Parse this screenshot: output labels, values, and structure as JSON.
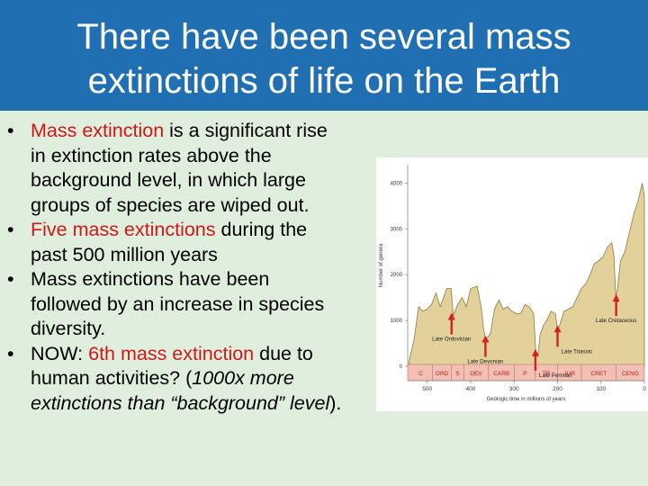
{
  "slide": {
    "title_line1": "There have been several mass",
    "title_line2": "extinctions of life on the Earth"
  },
  "bullets": {
    "b1": {
      "red": "Mass extinction",
      "rest1": " is a significant rise",
      "rest2": "in extinction rates above the",
      "rest3": "background level, in which large",
      "rest4": "groups of species are wiped out."
    },
    "b2": {
      "red": "Five mass extinctions",
      "rest1": " during the",
      "rest2": "past 500 million years"
    },
    "b3": {
      "line1": "Mass extinctions have been",
      "line2": "followed by an increase in species",
      "line3": "diversity."
    },
    "b4": {
      "pre": "NOW: ",
      "red": "6th mass extinction",
      "post": " due to",
      "line2a": "human activities? (",
      "line2b": "1000x more",
      "line3a": "extinctions than “background” level",
      "line3b": ")."
    }
  },
  "chart_data": {
    "type": "area",
    "ylabel": "Number of genera",
    "xlabel": "Geologic time in millions of years",
    "yticks": [
      0,
      1000,
      2000,
      3000,
      4000
    ],
    "xticks": [
      500,
      400,
      300,
      200,
      100,
      0
    ],
    "ylim": [
      0,
      4400
    ],
    "xlim": [
      545,
      0
    ],
    "series": [
      {
        "x": [
          542,
          530,
          520,
          510,
          500,
          490,
          480,
          470,
          455,
          445,
          440,
          430,
          420,
          410,
          400,
          385,
          375,
          370,
          365,
          355,
          345,
          335,
          325,
          315,
          305,
          295,
          285,
          275,
          265,
          255,
          250,
          245,
          240,
          232,
          225,
          215,
          205,
          200,
          195,
          185,
          175,
          165,
          155,
          145,
          135,
          125,
          115,
          105,
          95,
          85,
          75,
          70,
          66,
          62,
          55,
          45,
          35,
          25,
          15,
          5,
          0
        ],
        "values": [
          100,
          600,
          1300,
          1200,
          1250,
          1350,
          1600,
          1300,
          1700,
          1700,
          1100,
          1350,
          1500,
          1300,
          1700,
          1750,
          1250,
          800,
          600,
          700,
          1250,
          1450,
          1250,
          1300,
          1200,
          1150,
          1150,
          1350,
          1300,
          1150,
          300,
          250,
          700,
          900,
          1000,
          1200,
          1150,
          800,
          900,
          1200,
          1250,
          1300,
          1500,
          1700,
          1800,
          2000,
          2250,
          2300,
          2400,
          2600,
          2700,
          2400,
          1500,
          1700,
          2300,
          2500,
          2900,
          3300,
          3600,
          4000,
          3700
        ]
      }
    ],
    "periods": [
      "C",
      "ORD",
      "S",
      "DEV",
      "CARB",
      "P",
      "TR",
      "JUR",
      "CRET",
      "CENO"
    ],
    "period_bounds": [
      542,
      488,
      444,
      416,
      359,
      299,
      251,
      200,
      145,
      65,
      0
    ],
    "annotations": [
      {
        "label": "Late Ordovician",
        "x": 444,
        "y": 1050
      },
      {
        "label": "Late Devonian",
        "x": 366,
        "y": 560
      },
      {
        "label": "Late Permian",
        "x": 251,
        "y": 260
      },
      {
        "label": "Late Triassic",
        "x": 200,
        "y": 780
      },
      {
        "label": "Late Cretaceous",
        "x": 65,
        "y": 1450
      }
    ],
    "colors": {
      "fill": "#e2d19a",
      "stroke": "#8f7a3e",
      "arrow": "#d61f1f",
      "bar": "#f4c0b4",
      "bar_text": "#b52020",
      "bg": "#ffffff"
    }
  }
}
